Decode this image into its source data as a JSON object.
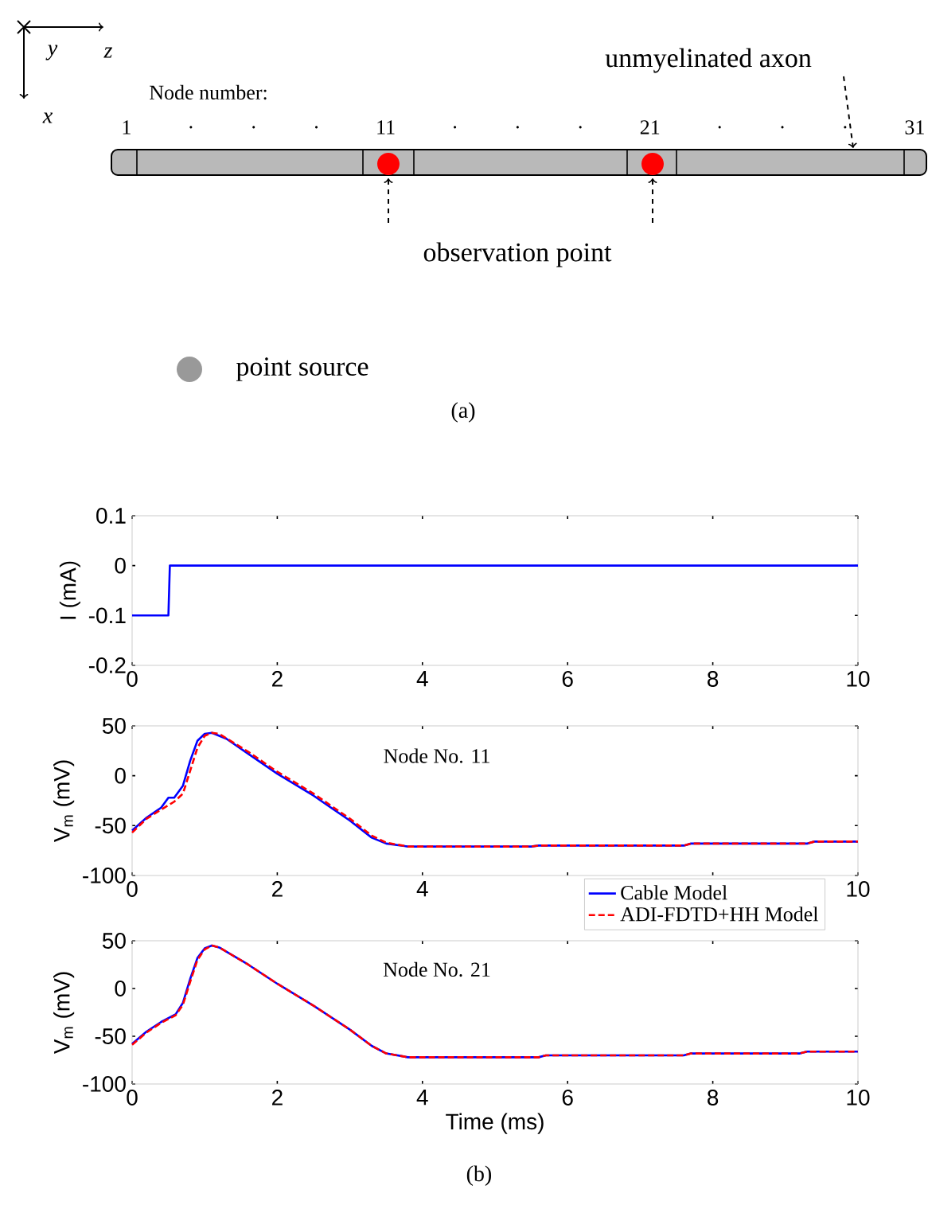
{
  "chart_data": [
    {
      "type": "other",
      "annotations": [
        "y",
        "z",
        "x",
        "Node number:",
        "1 · · · 11 · · · 21 · · · 31",
        "unmyelinated axon",
        "observation point",
        "point source",
        "(a)"
      ]
    },
    {
      "type": "line",
      "ylabel": "I (mA)",
      "xlim": [
        0,
        10
      ],
      "ylim": [
        -0.2,
        0.1
      ],
      "xticks": [
        0,
        2,
        4,
        6,
        8,
        10
      ],
      "yticks": [
        -0.2,
        -0.1,
        0,
        0.1
      ],
      "series": [
        {
          "color": "#0000ff",
          "x": [
            0,
            0.5,
            0.52,
            10
          ],
          "values": [
            -0.1,
            -0.1,
            0,
            0
          ]
        }
      ]
    },
    {
      "type": "line",
      "ylabel": "V$_{m}$ (mV)",
      "xlim": [
        0,
        10
      ],
      "ylim": [
        -100,
        50
      ],
      "xticks": [
        0,
        2,
        4,
        {
          "value": 6,
          "label": null
        },
        {
          "value": 8,
          "label": null
        },
        10
      ],
      "yticks": [
        -100,
        -50,
        0,
        50
      ],
      "legend": "bottom right",
      "annotations": [
        "Node No. 11"
      ],
      "series": [
        {
          "name": "Cable Model",
          "color": "#0000ff",
          "line_style": "solid",
          "x": [
            0,
            0.2,
            0.4,
            0.5,
            0.58,
            0.7,
            0.8,
            0.9,
            1.0,
            1.1,
            1.3,
            1.6,
            2.0,
            2.5,
            3.0,
            3.3,
            3.5,
            3.8,
            5.5,
            5.6,
            7.6,
            7.7,
            9.3,
            9.4,
            10
          ],
          "values": [
            -55,
            -42,
            -32,
            -22,
            -22,
            -10,
            15,
            35,
            42,
            43,
            37,
            22,
            2,
            -20,
            -45,
            -62,
            -68,
            -71,
            -71,
            -70,
            -70,
            -68,
            -68,
            -66,
            -66
          ]
        },
        {
          "name": "ADI-FDTD+HH Model",
          "color": "#ff0000",
          "line_style": "dashed",
          "x": [
            0,
            0.2,
            0.4,
            0.58,
            0.7,
            0.8,
            0.9,
            1.0,
            1.1,
            1.2,
            1.6,
            2.0,
            2.5,
            3.0,
            3.3,
            3.5,
            3.8,
            5.5,
            5.6,
            7.6,
            7.7,
            9.3,
            9.4,
            10
          ],
          "values": [
            -57,
            -43,
            -34,
            -26,
            -18,
            5,
            28,
            40,
            43,
            42,
            24,
            4,
            -18,
            -43,
            -60,
            -67,
            -71,
            -71,
            -70,
            -70,
            -68,
            -68,
            -66,
            -66
          ]
        }
      ]
    },
    {
      "type": "line",
      "ylabel": "V$_{m}$ (mV)",
      "xlabel": "Time (ms)",
      "xlim": [
        0,
        10
      ],
      "ylim": [
        -100,
        50
      ],
      "xticks": [
        0,
        2,
        4,
        6,
        8,
        10
      ],
      "yticks": [
        -100,
        -50,
        0,
        50
      ],
      "annotations": [
        "Node No. 21",
        "(b)"
      ],
      "series": [
        {
          "color": "#0000ff",
          "line_style": "solid",
          "x": [
            0,
            0.2,
            0.4,
            0.6,
            0.7,
            0.8,
            0.9,
            1.0,
            1.1,
            1.2,
            1.6,
            2.0,
            2.5,
            3.0,
            3.3,
            3.5,
            3.8,
            5.6,
            5.7,
            7.6,
            7.7,
            9.2,
            9.3,
            10
          ],
          "values": [
            -58,
            -45,
            -35,
            -27,
            -15,
            10,
            32,
            42,
            45,
            43,
            25,
            5,
            -18,
            -43,
            -60,
            -68,
            -72,
            -72,
            -70,
            -70,
            -68,
            -68,
            -66,
            -66
          ]
        },
        {
          "color": "#ff0000",
          "line_style": "dashed",
          "x": [
            0,
            0.2,
            0.4,
            0.6,
            0.7,
            0.8,
            0.9,
            1.0,
            1.1,
            1.2,
            1.6,
            2.0,
            2.5,
            3.0,
            3.3,
            3.5,
            3.8,
            5.6,
            5.7,
            7.6,
            7.7,
            9.2,
            9.3,
            10
          ],
          "values": [
            -59,
            -46,
            -36,
            -28,
            -17,
            7,
            30,
            41,
            45,
            43,
            25,
            5,
            -18,
            -43,
            -60,
            -68,
            -72,
            -72,
            -70,
            -70,
            -68,
            -68,
            -66,
            -66
          ]
        }
      ]
    }
  ]
}
